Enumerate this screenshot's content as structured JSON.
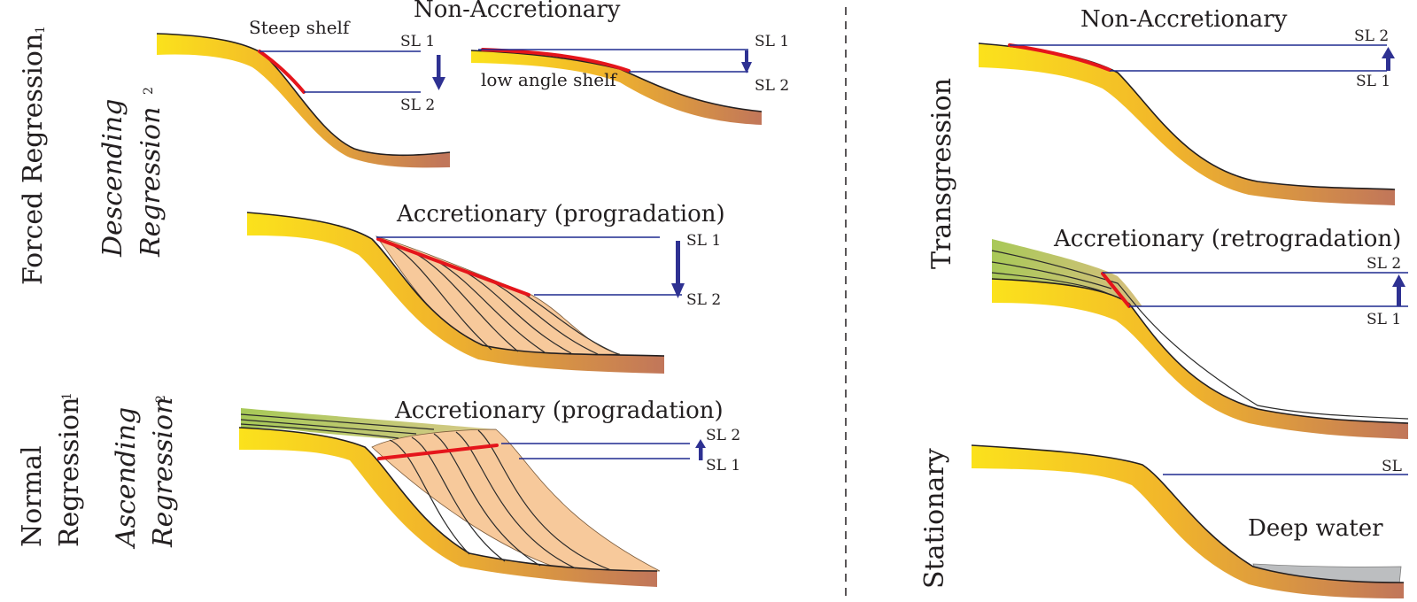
{
  "colors": {
    "sea_level_line": "#1f2a8f",
    "shoreline_trajectory": "#e5151b",
    "arrow": "#2e3192",
    "deep_water": "#bcbec0"
  },
  "left": {
    "forced_regression": "Forced Regression",
    "forced_regression_sup": "1",
    "descending": "Descending",
    "descending_regression": "Regression",
    "descending_sup": "2",
    "normal": "Normal",
    "normal_regression": "Regression",
    "normal_sup": "1",
    "ascending": "Ascending",
    "ascending_regression": "Regression",
    "ascending_sup": "2"
  },
  "panels": {
    "steep": {
      "title": "Non-Accretionary",
      "shelf_label": "Steep shelf",
      "sl1": "SL 1",
      "sl2": "SL 2"
    },
    "low": {
      "shelf_label": "low angle shelf",
      "sl1": "SL 1",
      "sl2": "SL 2"
    },
    "prog_desc": {
      "title": "Accretionary (progradation)",
      "sl1": "SL 1",
      "sl2": "SL 2"
    },
    "prog_asc": {
      "title": "Accretionary (progradation)",
      "sl2": "SL 2",
      "sl1": "SL 1"
    },
    "trans_non": {
      "title": "Non-Accretionary",
      "sl2": "SL 2",
      "sl1": "SL 1"
    },
    "trans_retro": {
      "title": "Accretionary (retrogradation)",
      "sl2": "SL 2",
      "sl1": "SL 1"
    },
    "stationary": {
      "sl": "SL",
      "deep_water": "Deep water"
    }
  },
  "right": {
    "transgression": "Transgression",
    "stationary": "Stationary"
  }
}
